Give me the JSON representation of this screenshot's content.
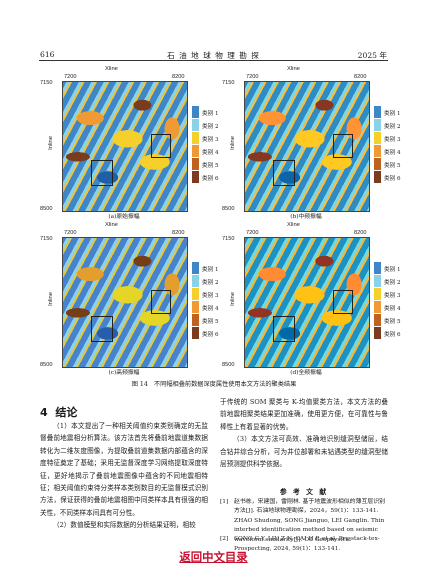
{
  "header": {
    "page_number": "616",
    "journal": "石 油 地 球 物 理 勘 探",
    "year": "2025 年"
  },
  "panels": [
    {
      "caption": "(a)原始振幅",
      "x_title": "Xline",
      "x_ticks": [
        "7200",
        "8200"
      ],
      "y_title": "Inline",
      "y_ticks": [
        "7150",
        "8500"
      ]
    },
    {
      "caption": "(b)中频振幅",
      "x_title": "Xline",
      "x_ticks": [
        "7200",
        "8200"
      ],
      "y_title": "Inline",
      "y_ticks": [
        "7150",
        "8500"
      ]
    },
    {
      "caption": "(c)高频振幅",
      "x_title": "Xline",
      "x_ticks": [
        "7200",
        "8200"
      ],
      "y_title": "Inline",
      "y_ticks": [
        "7150",
        "8500"
      ]
    },
    {
      "caption": "(d)全频振幅",
      "x_title": "Xline",
      "x_ticks": [
        "7200",
        "8200"
      ],
      "y_title": "Inline",
      "y_ticks": [
        "7150",
        "8500"
      ]
    }
  ],
  "legend": {
    "items": [
      {
        "label": "类别 1",
        "color": "#3f86c6"
      },
      {
        "label": "类别 2",
        "color": "#8ad2ea"
      },
      {
        "label": "类别 3",
        "color": "#f5d02a"
      },
      {
        "label": "类别 4",
        "color": "#ef9a35"
      },
      {
        "label": "类别 5",
        "color": "#c0621f"
      },
      {
        "label": "类别 6",
        "color": "#7a3b1e"
      }
    ]
  },
  "figure_caption": "图 14　不同幅相叠前数据深度属性使用本文方法的聚类结果",
  "section": {
    "number": "4",
    "title": "结论"
  },
  "left_column": [
    "（1）本文提出了一种相关阈值约束类别确定的无监督叠前地震相分析算法。该方法首先将叠前地震道集数据转化为二维灰度图像，为提取叠前道集数据内部蕴含的深度特征奠定了基础；采用无监督深度学习网络提取深度特征，更好地揭示了叠前地震图像中蕴含的不同地震相特征；相关阈值约束待分类样本类别数目的无监督模式识别方法，保证获得的叠前地震相图中同类样本具有很强的相关性，不同类样本间具有可分性。",
    "（2）数值模型和实际数据的分析结果证明，相较"
  ],
  "right_column": [
    "于传统的 SOM 聚类与 K-均值聚类方法，本文方法的叠前地震相聚类结果更加准确，使用更方便，在可靠性与鲁棒性上有着显著的优势。",
    "（3）本文方法可高效、准确地识别缝洞型储层，结合钻井综合分析，可为井位部署和未钻遇类型的缝洞型储层预测提供科学依据。"
  ],
  "references": {
    "title": "参 考 文 献",
    "items": [
      {
        "num": "[1]",
        "text": "赵书栋，宋建国，雷刚林. 基于地震波形相似的薄互层识别方法[J]. 石油地球物理勘探，2024，59(1)：133-141. ZHAO Shudong, SONG Jianguo, LEI Ganglin. Thin interbed identification method based on seismic waveform similarity[J]. Oil Geophysical Prospecting, 2024, 59(1)：133-141."
      },
      {
        "num": "[2]",
        "text": "SONG C Y, LIU Z N, CAI H P, et al. Pre-stack-tex-"
      }
    ]
  },
  "back_link": "返回中文目录"
}
